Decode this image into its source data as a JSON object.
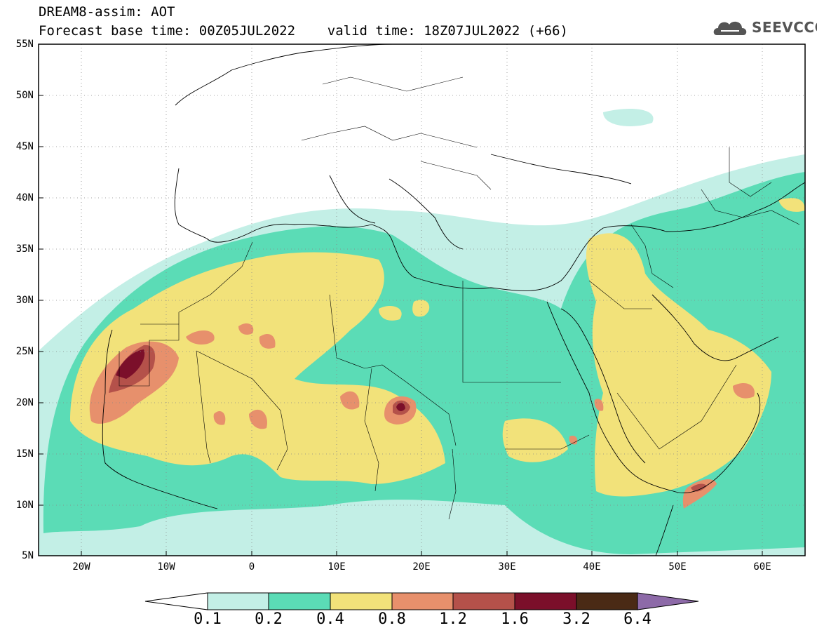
{
  "title": {
    "line1": "DREAM8-assim: AOT",
    "line2": "Forecast base time: 00Z05JUL2022    valid time: 18Z07JUL2022 (+66)"
  },
  "logo": {
    "text": "SEEVCCC",
    "icon": "cloud-icon"
  },
  "map": {
    "extent": {
      "lon_min": -25,
      "lon_max": 65,
      "lat_min": 5,
      "lat_max": 55
    },
    "lat_ticks": [
      "55N",
      "50N",
      "45N",
      "40N",
      "35N",
      "30N",
      "25N",
      "20N",
      "15N",
      "10N",
      "5N"
    ],
    "lon_ticks": [
      "20W",
      "10W",
      "0",
      "10E",
      "20E",
      "30E",
      "40E",
      "50E",
      "60E"
    ]
  },
  "colorbar": {
    "labels": [
      "0.1",
      "0.2",
      "0.4",
      "0.8",
      "1.2",
      "1.6",
      "3.2",
      "6.4"
    ],
    "colors": [
      "#ffffff",
      "#c3efe6",
      "#5bdcb6",
      "#f2e27a",
      "#e7906c",
      "#b4514a",
      "#7b0f2a",
      "#4a2a15",
      "#8d6aa8"
    ]
  }
}
